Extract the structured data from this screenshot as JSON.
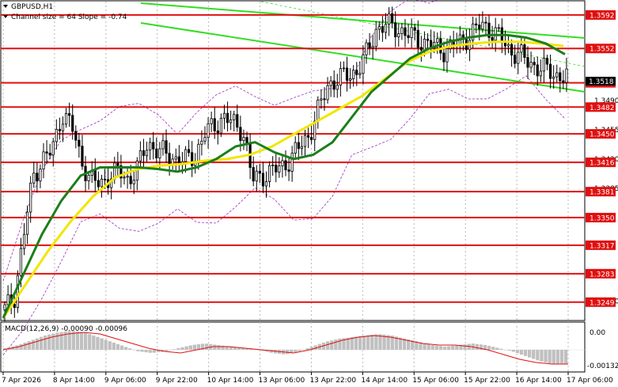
{
  "header": {
    "symbol": "GBPUSD,H1",
    "channel_info": "Channel size = 64 Slope = -0.74",
    "macd_label": "MACD(12,26,9) -0.00090 -0.00096"
  },
  "colors": {
    "level_line": "#e01010",
    "level_label_bg": "#e01010",
    "candle": "#000000",
    "ma_fast": "#1b7f1b",
    "ma_slow": "#f2e600",
    "channel": "#33dd22",
    "bollinger": "#9b2fbf",
    "macd_hist": "#c0c0c0",
    "macd_signal": "#e01010",
    "current_price_bg": "#000000"
  },
  "chart_data": {
    "type": "candlestick",
    "instrument": "GBPUSD",
    "timeframe": "H1",
    "ylim": [
      1.3228,
      1.3608
    ],
    "levels": [
      1.3592,
      1.3552,
      1.3511,
      1.3482,
      1.345,
      1.3416,
      1.3381,
      1.335,
      1.3317,
      1.3283,
      1.3249
    ],
    "current_price": "1.3518",
    "y_ticks": [
      "1.3490",
      "1.3455",
      "1.3420",
      "1.3385",
      "1.3250"
    ],
    "x_labels": [
      "7 Apr 2026",
      "8 Apr 14:00",
      "9 Apr 06:00",
      "9 Apr 22:00",
      "10 Apr 14:00",
      "13 Apr 06:00",
      "13 Apr 22:00",
      "14 Apr 14:00",
      "15 Apr 06:00",
      "15 Apr 22:00",
      "16 Apr 14:00",
      "17 Apr 06:00"
    ],
    "close_path": [
      1.324,
      1.3255,
      1.333,
      1.34,
      1.342,
      1.343,
      1.3475,
      1.346,
      1.342,
      1.3395,
      1.339,
      1.34,
      1.3405,
      1.3395,
      1.341,
      1.344,
      1.343,
      1.3425,
      1.342,
      1.3418,
      1.3425,
      1.345,
      1.346,
      1.347,
      1.3462,
      1.3455,
      1.3395,
      1.34,
      1.3405,
      1.341,
      1.342,
      1.3435,
      1.345,
      1.348,
      1.351,
      1.3515,
      1.352,
      1.3525,
      1.3545,
      1.3575,
      1.358,
      1.3578,
      1.357,
      1.3565,
      1.356,
      1.3555,
      1.355,
      1.3555,
      1.356,
      1.357,
      1.358,
      1.3575,
      1.3565,
      1.355,
      1.3545,
      1.3535,
      1.353,
      1.3525,
      1.352,
      1.3518
    ],
    "ma_fast": [
      1.323,
      1.328,
      1.333,
      1.337,
      1.34,
      1.341,
      1.341,
      1.341,
      1.3408,
      1.3405,
      1.341,
      1.342,
      1.3435,
      1.344,
      1.3428,
      1.342,
      1.3425,
      1.344,
      1.347,
      1.35,
      1.352,
      1.354,
      1.3552,
      1.356,
      1.3565,
      1.3568,
      1.3568,
      1.3565,
      1.3558,
      1.3545
    ],
    "ma_slow": [
      1.323,
      1.327,
      1.331,
      1.3345,
      1.3375,
      1.3398,
      1.3408,
      1.3412,
      1.3414,
      1.3418,
      1.342,
      1.3425,
      1.3435,
      1.345,
      1.3465,
      1.348,
      1.3495,
      1.3515,
      1.3535,
      1.3548,
      1.3555,
      1.3558,
      1.356,
      1.356,
      1.3558,
      1.3555
    ],
    "macd_hist": [
      0.0001,
      0.0003,
      0.0006,
      0.0009,
      0.0011,
      0.0012,
      0.0011,
      0.0008,
      0.0005,
      0.0002,
      -0.0001,
      -0.0002,
      -0.0001,
      0.0001,
      0.0003,
      0.0004,
      0.0003,
      0.0002,
      0.0001,
      0.0,
      -0.0002,
      -0.0003,
      -0.0001,
      0.0002,
      0.0005,
      0.0007,
      0.0008,
      0.0009,
      0.001,
      0.0009,
      0.0007,
      0.0005,
      0.0003,
      0.0002,
      0.0003,
      0.0004,
      0.0003,
      0.0001,
      -0.0001,
      -0.0004,
      -0.0007,
      -0.0009,
      -0.0009
    ],
    "macd_signal": [
      0.0,
      0.0002,
      0.0005,
      0.0008,
      0.001,
      0.0011,
      0.001,
      0.0007,
      0.0004,
      0.0001,
      -0.0001,
      -0.0002,
      0.0,
      0.0002,
      0.0002,
      0.0001,
      0.0,
      -0.0001,
      -0.0002,
      0.0,
      0.0003,
      0.0006,
      0.0008,
      0.0009,
      0.0008,
      0.0006,
      0.0004,
      0.0003,
      0.0003,
      0.0002,
      0.0,
      -0.0003,
      -0.0006,
      -0.0008,
      -0.0009,
      -0.0009
    ],
    "macd_ylim": [
      -0.0013,
      0.0016
    ],
    "macd_axis": [
      "0.00",
      "-0.00132"
    ]
  }
}
